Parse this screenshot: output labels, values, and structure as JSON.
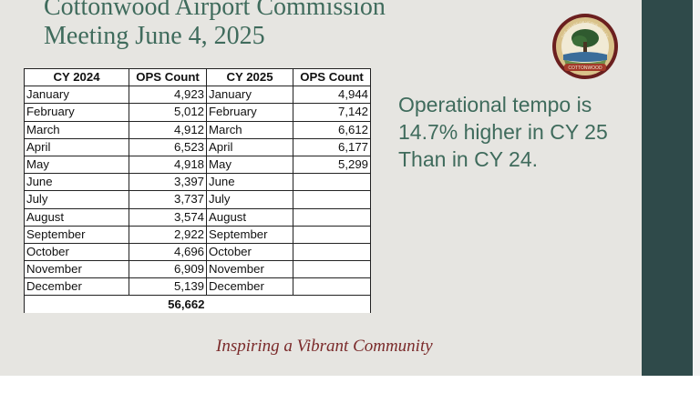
{
  "title": {
    "line1": "Cottonwood Airport Commission",
    "line2": "Meeting June 4, 2025"
  },
  "logo": {
    "icon": "city-seal-tree-logo",
    "text": "THE HEART OF VERDE VALLEY · COTTONWOOD"
  },
  "table": {
    "headers": [
      "CY 2024",
      "OPS Count",
      "CY 2025",
      "OPS Count"
    ],
    "rows": [
      {
        "m24": "January",
        "c24": "4,923",
        "m25": "January",
        "c25": "4,944"
      },
      {
        "m24": "February",
        "c24": "5,012",
        "m25": "February",
        "c25": "7,142"
      },
      {
        "m24": "March",
        "c24": "4,912",
        "m25": "March",
        "c25": "6,612"
      },
      {
        "m24": "April",
        "c24": "6,523",
        "m25": "April",
        "c25": "6,177"
      },
      {
        "m24": "May",
        "c24": "4,918",
        "m25": "May",
        "c25": "5,299"
      },
      {
        "m24": "June",
        "c24": "3,397",
        "m25": "June",
        "c25": ""
      },
      {
        "m24": "July",
        "c24": "3,737",
        "m25": "July",
        "c25": ""
      },
      {
        "m24": "August",
        "c24": "3,574",
        "m25": "August",
        "c25": ""
      },
      {
        "m24": "September",
        "c24": "2,922",
        "m25": "September",
        "c25": ""
      },
      {
        "m24": "October",
        "c24": "4,696",
        "m25": "October",
        "c25": ""
      },
      {
        "m24": "November",
        "c24": "6,909",
        "m25": "November",
        "c25": ""
      },
      {
        "m24": "December",
        "c24": "5,139",
        "m25": "December",
        "c25": ""
      }
    ],
    "total_2024": "56,662"
  },
  "callout": {
    "line1": "Operational tempo is",
    "line2": "14.7% higher in CY 25",
    "line3": "Than in CY 24."
  },
  "tagline": "Inspiring a Vibrant Community",
  "colors": {
    "title": "#3f6b5c",
    "side_band": "#2f4a4a",
    "tagline": "#7a2a2a",
    "slide_bg": "#e6e5e1"
  }
}
